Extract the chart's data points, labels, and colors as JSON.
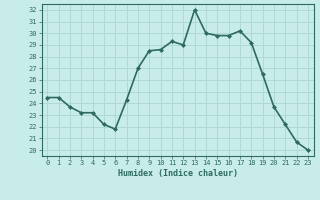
{
  "x": [
    0,
    1,
    2,
    3,
    4,
    5,
    6,
    7,
    8,
    9,
    10,
    11,
    12,
    13,
    14,
    15,
    16,
    17,
    18,
    19,
    20,
    21,
    22,
    23
  ],
  "y": [
    24.5,
    24.5,
    23.7,
    23.2,
    23.2,
    22.2,
    21.8,
    24.3,
    27.0,
    28.5,
    28.6,
    29.3,
    29.0,
    32.0,
    30.0,
    29.8,
    29.8,
    30.2,
    29.2,
    26.5,
    23.7,
    22.2,
    20.7,
    20.0
  ],
  "line_color": "#2e6b5e",
  "marker": "D",
  "marker_size": 2.0,
  "bg_color": "#c8ecea",
  "grid_color": "#b0d8d4",
  "xlabel": "Humidex (Indice chaleur)",
  "ylabel_ticks": [
    20,
    21,
    22,
    23,
    24,
    25,
    26,
    27,
    28,
    29,
    30,
    31,
    32
  ],
  "xlim": [
    -0.5,
    23.5
  ],
  "ylim": [
    19.5,
    32.5
  ],
  "tick_color": "#2e6b5e",
  "font_color": "#2e6b5e",
  "linewidth": 1.2
}
